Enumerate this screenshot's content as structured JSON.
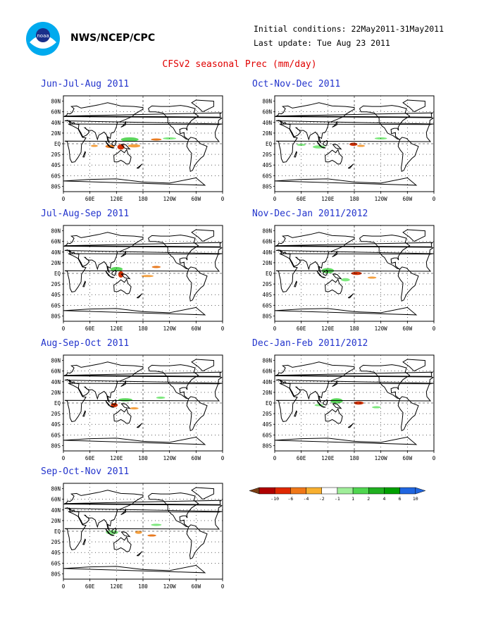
{
  "header": {
    "org": "NWS/NCEP/CPC",
    "initial_conditions": "Initial conditions: 22May2011-31May2011",
    "last_update": "Last update: Tue Aug 23 2011",
    "title": "CFSv2 seasonal Prec (mm/day)"
  },
  "axes": {
    "lat_labels": [
      "80N",
      "60N",
      "40N",
      "20N",
      "EQ",
      "20S",
      "40S",
      "60S",
      "80S"
    ],
    "lon_labels": [
      "0",
      "60E",
      "120E",
      "180",
      "120W",
      "60W",
      "0"
    ]
  },
  "panels": [
    {
      "title": "Jun-Jul-Aug 2011"
    },
    {
      "title": "Oct-Nov-Dec 2011"
    },
    {
      "title": "Jul-Aug-Sep 2011"
    },
    {
      "title": "Nov-Dec-Jan 2011/2012"
    },
    {
      "title": "Aug-Sep-Oct 2011"
    },
    {
      "title": "Dec-Jan-Feb 2011/2012"
    },
    {
      "title": "Sep-Oct-Nov 2011"
    }
  ],
  "colorbar": {
    "labels": [
      "-10",
      "-6",
      "-4",
      "-2",
      "-1",
      "1",
      "2",
      "4",
      "6",
      "10"
    ],
    "colors": [
      "#7a3d14",
      "#b00000",
      "#e02800",
      "#f07818",
      "#f8b030",
      "#ffffff",
      "#a0ee9a",
      "#50d650",
      "#20b020",
      "#00a000",
      "#2066e0"
    ]
  }
}
